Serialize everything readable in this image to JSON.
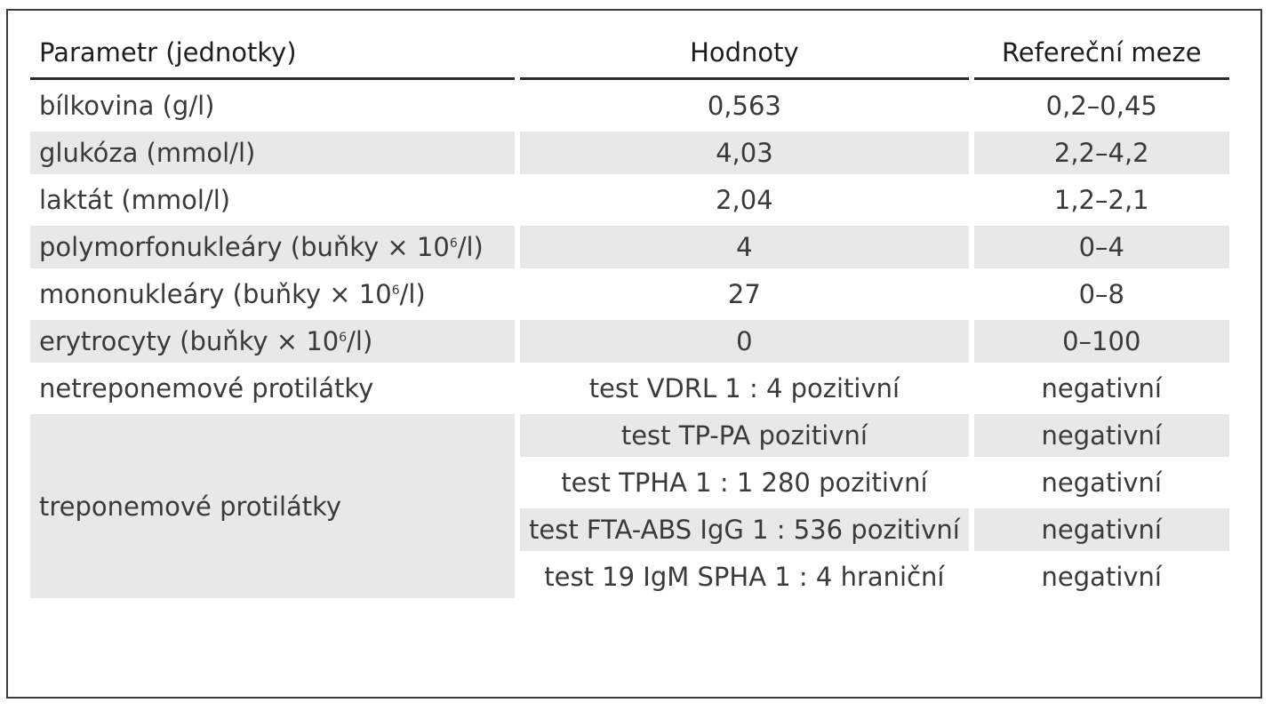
{
  "table": {
    "headers": {
      "parameter": "Parametr (jednotky)",
      "values": "Hodnoty",
      "reference": "Refereční meze"
    },
    "rows": [
      {
        "parameter": "bílkovina (g/l)",
        "value": "0,563",
        "reference": "0,2–0,45"
      },
      {
        "parameter": "glukóza (mmol/l)",
        "value": "4,03",
        "reference": "2,2–4,2"
      },
      {
        "parameter": "laktát (mmol/l)",
        "value": "2,04",
        "reference": "1,2–2,1"
      },
      {
        "parameter_main": "polymorfonukleáry (buňky × 10",
        "parameter_sup": "6",
        "parameter_tail": "/l)",
        "value": "4",
        "reference": "0–4"
      },
      {
        "parameter_main": "mononukleáry (buňky × 10",
        "parameter_sup": "6",
        "parameter_tail": "/l)",
        "value": "27",
        "reference": "0–8"
      },
      {
        "parameter_main": "erytrocyty (buňky × 10",
        "parameter_sup": "6",
        "parameter_tail": "/l)",
        "value": "0",
        "reference": "0–100"
      },
      {
        "parameter": "netreponemové protilátky",
        "value": "test VDRL 1 : 4 pozitivní",
        "reference": "negativní"
      }
    ],
    "treponemal": {
      "parameter": "treponemové protilátky",
      "tests": [
        {
          "value": "test TP-PA pozitivní",
          "reference": "negativní"
        },
        {
          "value": "test TPHA 1 : 1 280 pozitivní",
          "reference": "negativní"
        },
        {
          "value": "test FTA-ABS IgG 1 : 536 pozitivní",
          "reference": "negativní"
        },
        {
          "value": "test 19 IgM SPHA 1 : 4 hraniční",
          "reference": "negativní"
        }
      ]
    }
  }
}
